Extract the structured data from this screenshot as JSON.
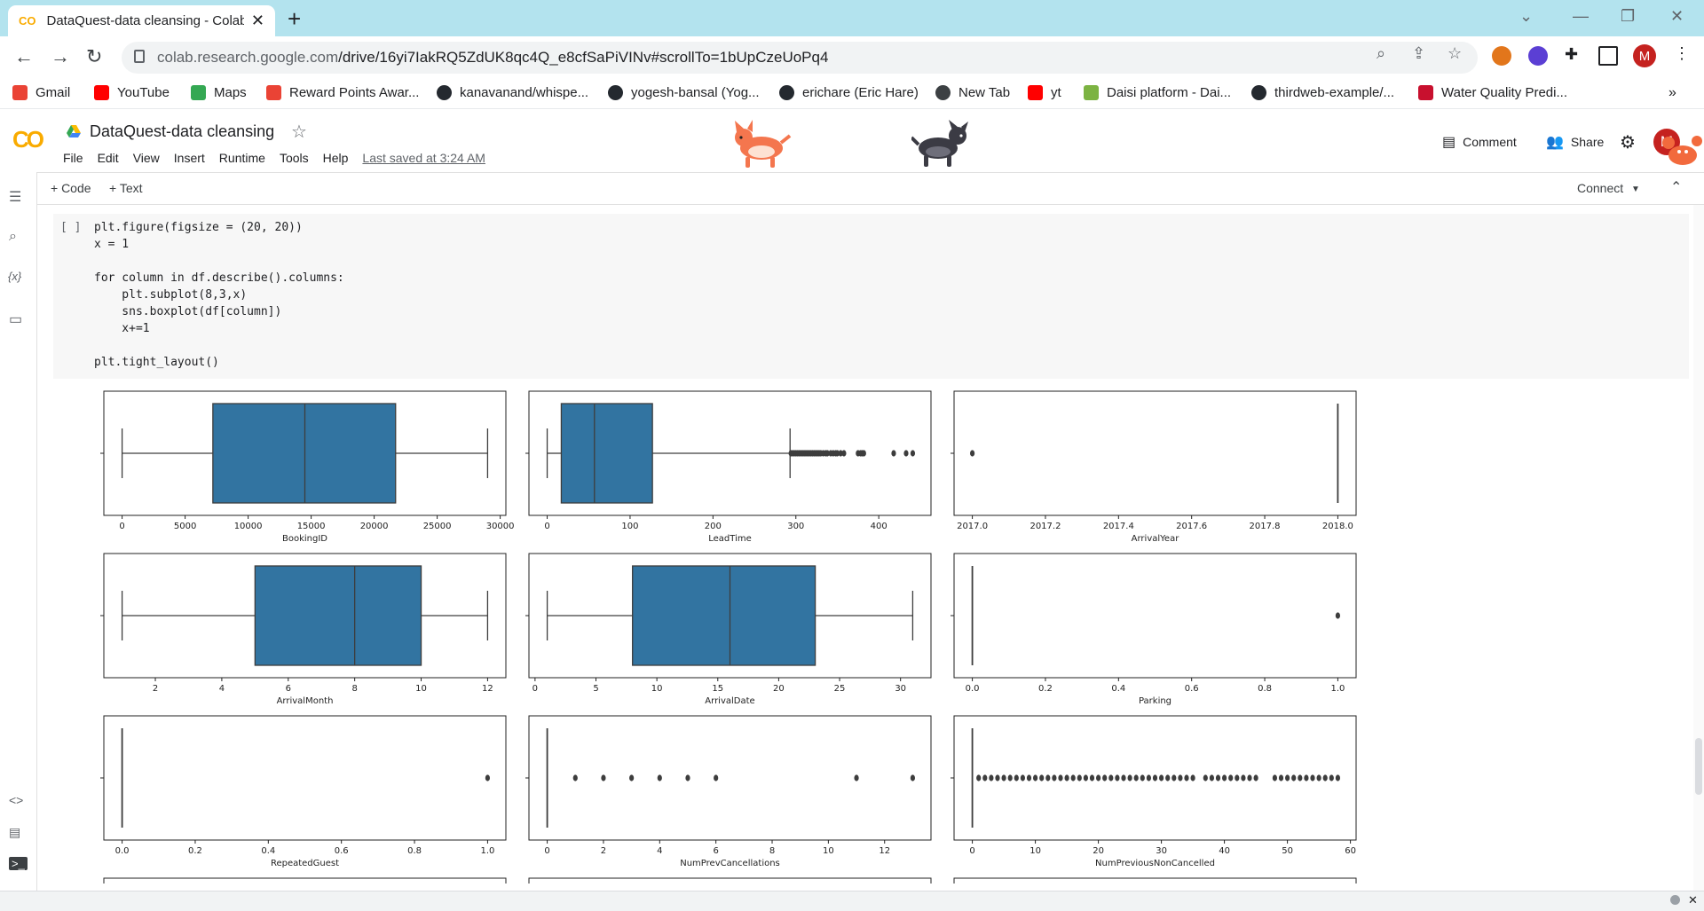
{
  "browser": {
    "tab_title": "DataQuest-data cleansing - Colab",
    "tab_favicon": "CO",
    "url_host": "colab.research.google.com",
    "url_path": "/drive/16yi7IakRQ5ZdUK8qc4Q_e8cfSaPiVINv#scrollTo=1bUpCzeUoPq4",
    "profile_initial": "M"
  },
  "bookmarks": [
    {
      "label": "Gmail",
      "icon": "gmail-icon",
      "color": "#ea4335"
    },
    {
      "label": "YouTube",
      "icon": "youtube-icon",
      "color": "#ff0000"
    },
    {
      "label": "Maps",
      "icon": "maps-icon",
      "color": "#34a853"
    },
    {
      "label": "Reward Points Awar...",
      "icon": "gmail-icon",
      "color": "#ea4335"
    },
    {
      "label": "kanavanand/whispe...",
      "icon": "github-icon",
      "color": "#24292f"
    },
    {
      "label": "yogesh-bansal (Yog...",
      "icon": "github-icon",
      "color": "#24292f"
    },
    {
      "label": "erichare (Eric Hare)",
      "icon": "github-icon",
      "color": "#24292f"
    },
    {
      "label": "New Tab",
      "icon": "globe-icon",
      "color": "#3c4043"
    },
    {
      "label": "yt",
      "icon": "youtube-icon",
      "color": "#ff0000"
    },
    {
      "label": "Daisi platform - Dai...",
      "icon": "daisi-icon",
      "color": "#7cb342"
    },
    {
      "label": "thirdweb-example/...",
      "icon": "github-icon",
      "color": "#24292f"
    },
    {
      "label": "Water Quality Predi...",
      "icon": "unlv-icon",
      "color": "#c8102e"
    }
  ],
  "colab": {
    "title": "DataQuest-data cleansing",
    "menu": [
      "File",
      "Edit",
      "View",
      "Insert",
      "Runtime",
      "Tools",
      "Help"
    ],
    "last_saved": "Last saved at 3:24 AM",
    "comment": "Comment",
    "share": "Share",
    "user_initial": "M",
    "add_code": "+ Code",
    "add_text": "+ Text",
    "connect": "Connect"
  },
  "cell": {
    "run_indicator": "[ ]",
    "code_lines": [
      "plt.figure(figsize = (20, 20))",
      "x = 1",
      "",
      "for column in df.describe().columns:",
      "    plt.subplot(8,3,x)",
      "    sns.boxplot(df[column])",
      "    x+=1",
      "",
      "plt.tight_layout()"
    ]
  },
  "chart_data": [
    {
      "type": "boxplot",
      "xlabel": "BookingID",
      "xlim": [
        -1450,
        30450
      ],
      "ticks": [
        0,
        5000,
        10000,
        15000,
        20000,
        25000,
        30000
      ],
      "tick_labels": [
        "0",
        "5000",
        "10000",
        "15000",
        "20000",
        "25000",
        "30000"
      ],
      "whisker_low": 0,
      "q1": 7200,
      "median": 14500,
      "q3": 21700,
      "whisker_high": 29000,
      "outliers": []
    },
    {
      "type": "boxplot",
      "xlabel": "LeadTime",
      "xlim": [
        -22,
        463
      ],
      "ticks": [
        0,
        100,
        200,
        300,
        400
      ],
      "tick_labels": [
        "0",
        "100",
        "200",
        "300",
        "400"
      ],
      "whisker_low": 0,
      "q1": 17,
      "median": 57,
      "q3": 127,
      "whisker_high": 293,
      "outliers": [
        294,
        296,
        298,
        300,
        302,
        304,
        306,
        308,
        310,
        312,
        314,
        316,
        318,
        320,
        322,
        324,
        326,
        328,
        330,
        333,
        336,
        338,
        342,
        345,
        348,
        350,
        354,
        358,
        375,
        378,
        380,
        382,
        418,
        433,
        441
      ]
    },
    {
      "type": "boxplot",
      "xlabel": "ArrivalYear",
      "xlim": [
        2016.95,
        2018.05
      ],
      "ticks": [
        2017.0,
        2017.2,
        2017.4,
        2017.6,
        2017.8,
        2018.0
      ],
      "tick_labels": [
        "2017.0",
        "2017.2",
        "2017.4",
        "2017.6",
        "2017.8",
        "2018.0"
      ],
      "whisker_low": 2018,
      "q1": 2018,
      "median": 2018,
      "q3": 2018,
      "whisker_high": 2018,
      "outliers": [
        2017
      ]
    },
    {
      "type": "boxplot",
      "xlabel": "ArrivalMonth",
      "xlim": [
        0.45,
        12.55
      ],
      "ticks": [
        2,
        4,
        6,
        8,
        10,
        12
      ],
      "tick_labels": [
        "2",
        "4",
        "6",
        "8",
        "10",
        "12"
      ],
      "whisker_low": 1,
      "q1": 5,
      "median": 8,
      "q3": 10,
      "whisker_high": 12,
      "outliers": []
    },
    {
      "type": "boxplot",
      "xlabel": "ArrivalDate",
      "xlim": [
        -0.5,
        32.5
      ],
      "ticks": [
        0,
        5,
        10,
        15,
        20,
        25,
        30
      ],
      "tick_labels": [
        "0",
        "5",
        "10",
        "15",
        "20",
        "25",
        "30"
      ],
      "whisker_low": 1,
      "q1": 8,
      "median": 16,
      "q3": 23,
      "whisker_high": 31,
      "outliers": []
    },
    {
      "type": "boxplot",
      "xlabel": "Parking",
      "xlim": [
        -0.05,
        1.05
      ],
      "ticks": [
        0,
        0.2,
        0.4,
        0.6,
        0.8,
        1.0
      ],
      "tick_labels": [
        "0.0",
        "0.2",
        "0.4",
        "0.6",
        "0.8",
        "1.0"
      ],
      "whisker_low": 0,
      "q1": 0,
      "median": 0,
      "q3": 0,
      "whisker_high": 0,
      "outliers": [
        1
      ]
    },
    {
      "type": "boxplot",
      "xlabel": "RepeatedGuest",
      "xlim": [
        -0.05,
        1.05
      ],
      "ticks": [
        0,
        0.2,
        0.4,
        0.6,
        0.8,
        1.0
      ],
      "tick_labels": [
        "0.0",
        "0.2",
        "0.4",
        "0.6",
        "0.8",
        "1.0"
      ],
      "whisker_low": 0,
      "q1": 0,
      "median": 0,
      "q3": 0,
      "whisker_high": 0,
      "outliers": [
        1
      ]
    },
    {
      "type": "boxplot",
      "xlabel": "NumPrevCancellations",
      "xlim": [
        -0.65,
        13.65
      ],
      "ticks": [
        0,
        2,
        4,
        6,
        8,
        10,
        12
      ],
      "tick_labels": [
        "0",
        "2",
        "4",
        "6",
        "8",
        "10",
        "12"
      ],
      "whisker_low": 0,
      "q1": 0,
      "median": 0,
      "q3": 0,
      "whisker_high": 0,
      "outliers": [
        1,
        2,
        3,
        4,
        5,
        6,
        11,
        13
      ]
    },
    {
      "type": "boxplot",
      "xlabel": "NumPreviousNonCancelled",
      "xlim": [
        -2.9,
        60.9
      ],
      "ticks": [
        0,
        10,
        20,
        30,
        40,
        50,
        60
      ],
      "tick_labels": [
        "0",
        "10",
        "20",
        "30",
        "40",
        "50",
        "60"
      ],
      "whisker_low": 0,
      "q1": 0,
      "median": 0,
      "q3": 0,
      "whisker_high": 0,
      "outliers": [
        1,
        2,
        3,
        4,
        5,
        6,
        7,
        8,
        9,
        10,
        11,
        12,
        13,
        14,
        15,
        16,
        17,
        18,
        19,
        20,
        21,
        22,
        23,
        24,
        25,
        26,
        27,
        28,
        29,
        30,
        31,
        32,
        33,
        34,
        35,
        37,
        38,
        39,
        40,
        41,
        42,
        43,
        44,
        45,
        48,
        49,
        50,
        51,
        52,
        53,
        54,
        55,
        56,
        57,
        58
      ]
    }
  ]
}
